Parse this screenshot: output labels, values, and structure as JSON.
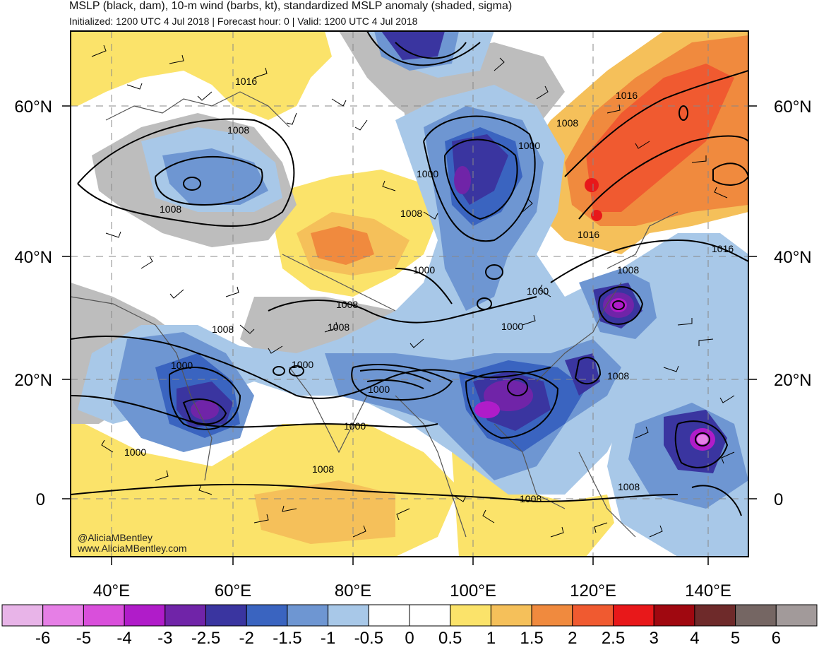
{
  "header": {
    "title": "MSLP (black, dam), 10-m wind (barbs, kt), standardized MSLP anomaly (shaded, sigma)",
    "subtitle": "Initialized: 1200 UTC 4 Jul 2018 | Forecast hour: 0 | Valid: 1200 UTC 4 Jul 2018"
  },
  "map": {
    "lat_labels": [
      "60°N",
      "40°N",
      "20°N",
      "0"
    ],
    "lon_labels": [
      "40°E",
      "60°E",
      "80°E",
      "100°E",
      "120°E",
      "140°E"
    ],
    "contour_labels": [
      "1016",
      "1008",
      "1008",
      "1000",
      "1008",
      "1000",
      "1000",
      "1016",
      "1008",
      "1000",
      "1000",
      "1008",
      "1008",
      "1000",
      "1000",
      "1000",
      "1000",
      "1000",
      "1008",
      "1008",
      "1008",
      "1008",
      "1008",
      "1016",
      "1008"
    ],
    "credit": [
      "@AliciaMBentley",
      "www.AliciaMBentley.com"
    ]
  },
  "colorbar": {
    "labels": [
      "-6",
      "-5",
      "-4",
      "-3",
      "-2.5",
      "-2",
      "-1.5",
      "-1",
      "-0.5",
      "0",
      "0.5",
      "1",
      "1.5",
      "2",
      "2.5",
      "3",
      "4",
      "5",
      "6"
    ],
    "colors": [
      "#e8b4e8",
      "#e67fe6",
      "#d94fdb",
      "#b01cc9",
      "#7024a8",
      "#3a35a0",
      "#3a64c0",
      "#6e96d2",
      "#a8c8e8",
      "#ffffff",
      "#ffffff",
      "#fbe36a",
      "#f5c05a",
      "#f08a3e",
      "#f05a30",
      "#e8181a",
      "#a00810",
      "#6e2a2a",
      "#756663",
      "#a29a9a"
    ]
  },
  "chart_data": {
    "type": "map",
    "fields": [
      "MSLP contours (dam)",
      "10-m wind barbs (kt)",
      "standardized MSLP anomaly (sigma)"
    ],
    "lon_range": [
      33,
      148
    ],
    "lat_range": [
      -10,
      70
    ],
    "anomaly_bins": [
      -6,
      -5,
      -4,
      -3,
      -2.5,
      -2,
      -1.5,
      -1,
      -0.5,
      0,
      0.5,
      1,
      1.5,
      2,
      2.5,
      3,
      4,
      5,
      6
    ]
  }
}
